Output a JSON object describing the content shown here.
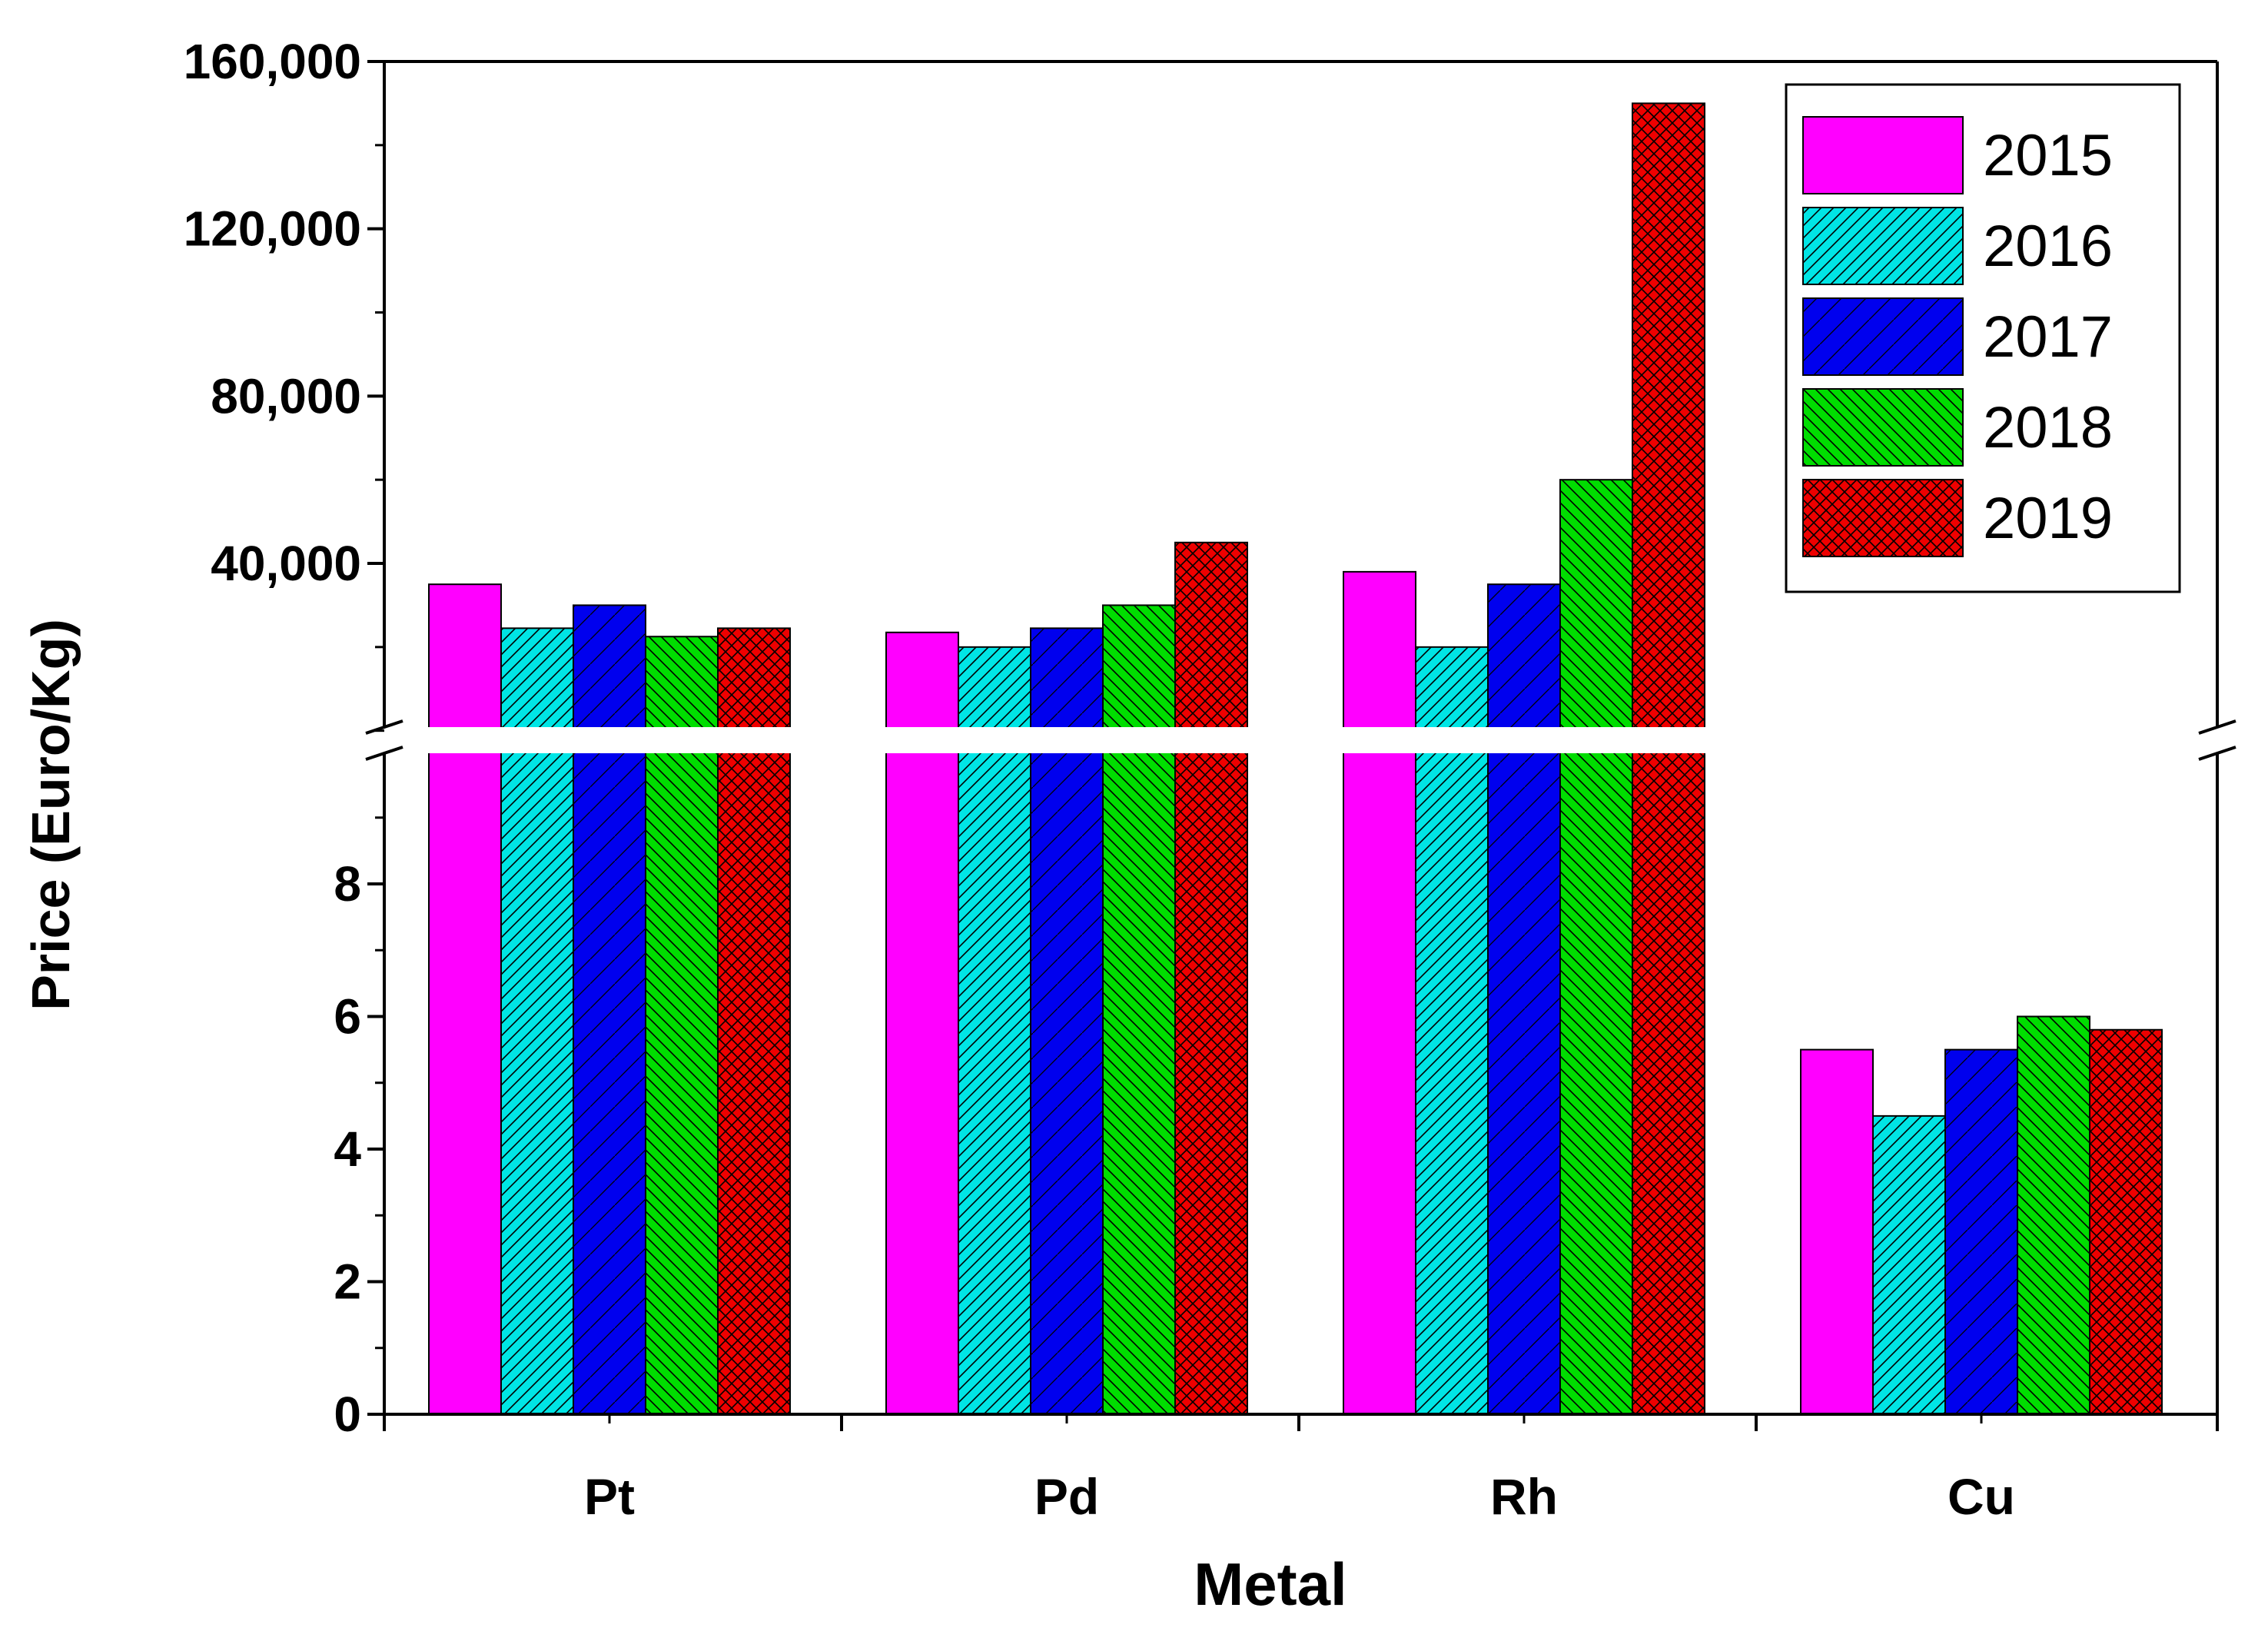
{
  "chart_data": {
    "type": "bar",
    "xlabel": "Metal",
    "ylabel": "Price (Euro/Kg)",
    "categories": [
      "Pt",
      "Pd",
      "Rh",
      "Cu"
    ],
    "series": [
      {
        "name": "2015",
        "values": [
          35000,
          23500,
          38000,
          5.5
        ],
        "color": "#ff00ff",
        "pattern": "solid"
      },
      {
        "name": "2016",
        "values": [
          24500,
          20000,
          20000,
          4.5
        ],
        "color": "#00e5e5",
        "pattern": "hatch-right"
      },
      {
        "name": "2017",
        "values": [
          30000,
          24500,
          35000,
          5.5
        ],
        "color": "#0000ee",
        "pattern": "hatch-right-sparse"
      },
      {
        "name": "2018",
        "values": [
          22500,
          30000,
          60000,
          6.0
        ],
        "color": "#00dd00",
        "pattern": "hatch-left"
      },
      {
        "name": "2019",
        "values": [
          24500,
          45000,
          150000,
          5.8
        ],
        "color": "#ee0000",
        "pattern": "crosshatch"
      }
    ],
    "y_axis_broken": true,
    "lower_segment": {
      "range": [
        0,
        10
      ],
      "ticks": [
        "0",
        "2",
        "4",
        "6",
        "8"
      ]
    },
    "upper_segment": {
      "range": [
        10,
        160000
      ],
      "ticks": [
        "40,000",
        "80,000",
        "120,000",
        "160,000"
      ]
    },
    "legend_position": "top-right",
    "grid": false
  }
}
